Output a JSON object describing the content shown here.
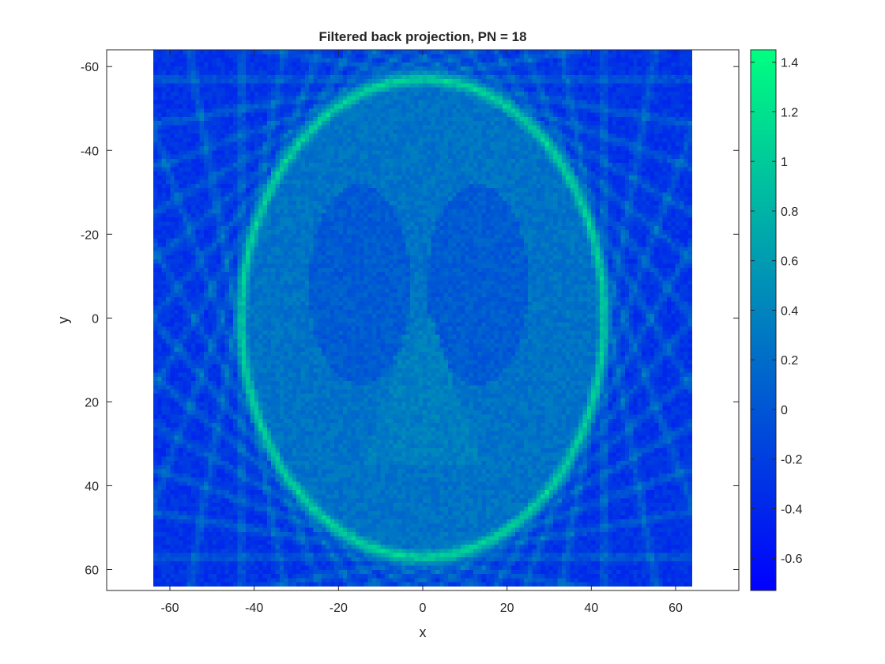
{
  "chart_data": {
    "type": "heatmap",
    "title": "Filtered back projection, PN = 18",
    "xlabel": "x",
    "ylabel": "y",
    "xlim": [
      -75,
      75
    ],
    "ylim": [
      -64,
      65
    ],
    "y_reversed": true,
    "image_extent": {
      "x": [
        -64,
        64
      ],
      "y": [
        -64,
        64
      ]
    },
    "grid_size": 128,
    "xticks": [
      -60,
      -40,
      -20,
      0,
      20,
      40,
      60
    ],
    "xtick_labels": [
      "-60",
      "-40",
      "-20",
      "0",
      "20",
      "40",
      "60"
    ],
    "yticks": [
      -60,
      -40,
      -20,
      0,
      20,
      40,
      60
    ],
    "ytick_labels": [
      "-60",
      "-40",
      "-20",
      "0",
      "20",
      "40",
      "60"
    ],
    "colormap": "winter",
    "colormap_colors": [
      "#0000ff",
      "#00ff80"
    ],
    "clim": [
      -0.73,
      1.45
    ],
    "colorbar": {
      "ticks": [
        -0.6,
        -0.4,
        -0.2,
        0,
        0.2,
        0.4,
        0.6,
        0.8,
        1,
        1.2,
        1.4
      ],
      "tick_labels": [
        "-0.6",
        "-0.4",
        "-0.2",
        "0",
        "0.2",
        "0.4",
        "0.6",
        "0.8",
        "1",
        "1.2",
        "1.4"
      ],
      "placement": "right"
    },
    "features": {
      "background_value": -0.3,
      "skull_ellipse": {
        "center": [
          0,
          0
        ],
        "semi_x": 43,
        "semi_y": 57,
        "value": 1.1
      },
      "interior_value": 0.25,
      "ventricles_value": 0.05,
      "noise_amplitude": 0.12
    }
  }
}
